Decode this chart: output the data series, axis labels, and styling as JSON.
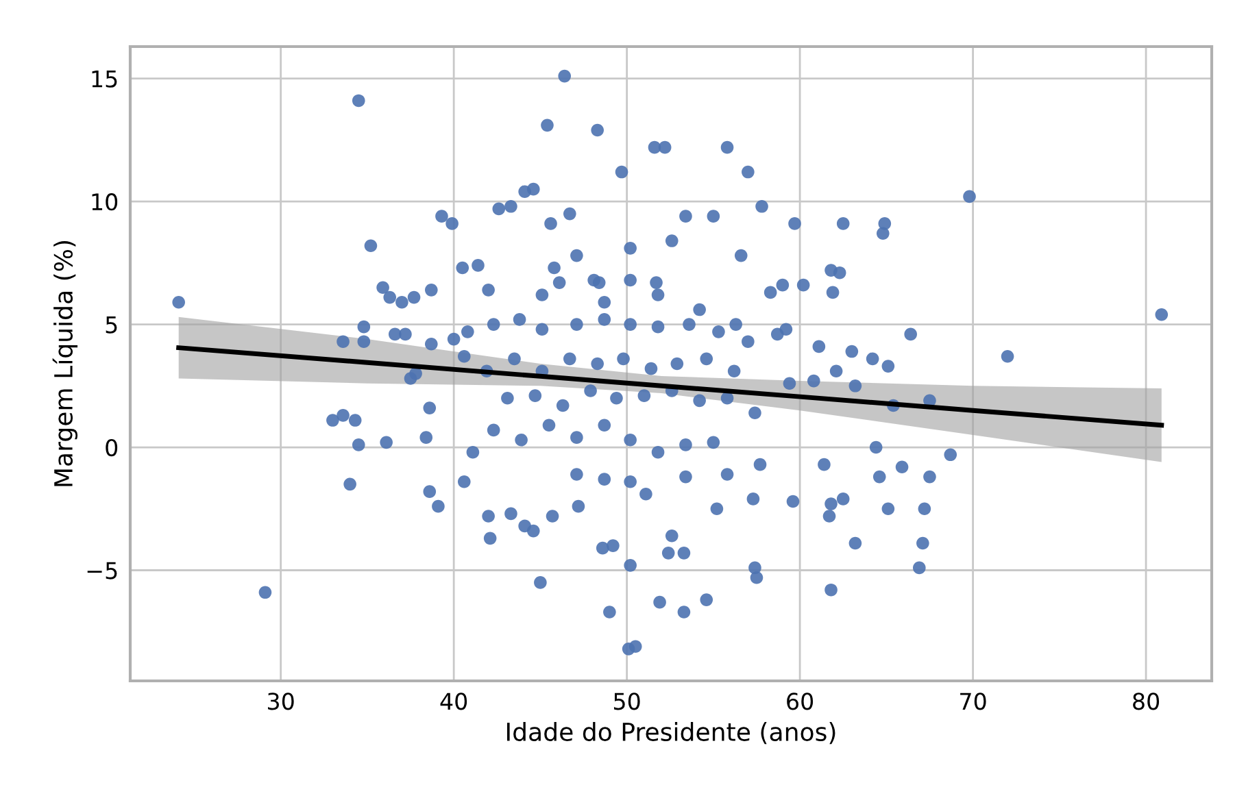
{
  "chart_data": {
    "type": "scatter",
    "xlabel": "Idade do Presidente (anos)",
    "ylabel": "Margem Líquida (%)",
    "xlim": [
      21.3,
      83.8
    ],
    "ylim": [
      -9.5,
      16.3
    ],
    "xticks": [
      30,
      40,
      50,
      60,
      70,
      80
    ],
    "yticks": [
      {
        "value": -5,
        "label": "−5"
      },
      0,
      5,
      10,
      15
    ],
    "grid": true,
    "series": [
      {
        "marker": "circle",
        "color": "#4c72b0",
        "x": [
          24.1,
          29.1,
          34.5,
          35.2,
          46.4,
          45.4,
          48.3,
          51.6,
          52.2,
          55.8,
          49.7,
          57.0,
          69.8,
          44.1,
          44.6,
          39.3,
          39.9,
          42.6,
          43.3,
          57.8,
          59.7,
          62.5,
          64.9,
          64.8,
          53.4,
          55.0,
          45.6,
          46.7,
          41.4,
          40.5,
          35.9,
          36.3,
          37.0,
          37.7,
          38.7,
          42.0,
          45.8,
          46.1,
          48.1,
          48.4,
          50.2,
          51.7,
          59.0,
          61.8,
          62.3,
          61.9,
          60.2,
          58.3,
          33.6,
          34.8,
          34.8,
          36.6,
          37.2,
          38.7,
          37.5,
          37.8,
          40.0,
          40.6,
          40.8,
          42.3,
          43.8,
          45.1,
          47.1,
          48.7,
          50.2,
          51.8,
          53.6,
          55.3,
          56.3,
          57.0,
          58.7,
          59.2,
          61.1,
          63.0,
          66.4,
          72.0,
          80.9,
          65.1,
          64.2,
          62.1,
          60.8,
          59.4,
          63.2,
          65.4,
          67.5,
          33.6,
          33.0,
          34.3,
          34.5,
          36.1,
          34.0,
          38.4,
          38.6,
          38.6,
          39.1,
          40.6,
          42.0,
          42.1,
          43.3,
          44.1,
          44.6,
          45.0,
          45.7,
          47.2,
          48.6,
          49.2,
          49.0,
          50.1,
          50.5,
          50.2,
          51.1,
          52.4,
          53.3,
          51.9,
          53.3,
          54.6,
          57.4,
          57.5,
          55.2,
          57.3,
          59.6,
          61.4,
          61.8,
          61.7,
          62.5,
          63.2,
          64.6,
          65.1,
          67.2,
          67.1,
          66.9,
          68.7,
          67.5,
          65.9,
          64.4,
          61.8,
          57.7,
          55.0,
          53.4,
          51.8,
          50.2,
          48.7,
          47.1,
          45.5,
          43.9,
          42.3,
          41.1,
          43.1,
          44.7,
          46.3,
          47.9,
          49.4,
          51.0,
          52.6,
          54.2,
          55.8,
          57.4,
          41.9,
          43.5,
          45.1,
          46.7,
          48.3,
          49.8,
          51.4,
          52.9,
          54.6,
          56.2,
          47.1,
          48.7,
          50.2,
          53.4,
          55.8,
          52.6,
          48.7,
          51.8,
          54.2,
          45.1,
          50.2,
          52.6,
          47.1,
          56.6
        ],
        "values": [
          5.9,
          -5.9,
          14.1,
          8.2,
          15.1,
          13.1,
          12.9,
          12.2,
          12.2,
          12.2,
          11.2,
          11.2,
          10.2,
          10.4,
          10.5,
          9.4,
          9.1,
          9.7,
          9.8,
          9.8,
          9.1,
          9.1,
          9.1,
          8.7,
          9.4,
          9.4,
          9.1,
          9.5,
          7.4,
          7.3,
          6.5,
          6.1,
          5.9,
          6.1,
          6.4,
          6.4,
          7.3,
          6.7,
          6.8,
          6.7,
          6.8,
          6.7,
          6.6,
          7.2,
          7.1,
          6.3,
          6.6,
          6.3,
          4.3,
          4.9,
          4.3,
          4.6,
          4.6,
          4.2,
          2.8,
          3.0,
          4.4,
          3.7,
          4.7,
          5.0,
          5.2,
          4.8,
          5.0,
          5.2,
          5.0,
          4.9,
          5.0,
          4.7,
          5.0,
          4.3,
          4.6,
          4.8,
          4.1,
          3.9,
          4.6,
          3.7,
          5.4,
          3.3,
          3.6,
          3.1,
          2.7,
          2.6,
          2.5,
          1.7,
          1.9,
          1.3,
          1.1,
          1.1,
          0.1,
          0.2,
          -1.5,
          0.4,
          1.6,
          -1.8,
          -2.4,
          -1.4,
          -2.8,
          -3.7,
          -2.7,
          -3.2,
          -3.4,
          -5.5,
          -2.8,
          -2.4,
          -4.1,
          -4.0,
          -6.7,
          -8.2,
          -8.1,
          -4.8,
          -1.9,
          -4.3,
          -4.3,
          -6.3,
          -6.7,
          -6.2,
          -4.9,
          -5.3,
          -2.5,
          -2.1,
          -2.2,
          -0.7,
          -2.3,
          -2.8,
          -2.1,
          -3.9,
          -1.2,
          -2.5,
          -2.5,
          -3.9,
          -4.9,
          -0.3,
          -1.2,
          -0.8,
          0.0,
          -5.8,
          -0.7,
          0.2,
          0.1,
          -0.2,
          0.3,
          0.9,
          0.4,
          0.9,
          0.3,
          0.7,
          -0.2,
          2.0,
          2.1,
          1.7,
          2.3,
          2.0,
          2.1,
          2.3,
          1.9,
          2.0,
          1.4,
          3.1,
          3.6,
          3.1,
          3.6,
          3.4,
          3.6,
          3.2,
          3.4,
          3.6,
          3.1,
          -1.1,
          -1.3,
          -1.4,
          -1.2,
          -1.1,
          -3.6,
          5.9,
          6.2,
          5.6,
          6.2,
          8.1,
          8.4,
          7.8,
          7.8
        ]
      },
      {
        "type": "line",
        "color": "#000000",
        "x": [
          24.1,
          35,
          45,
          52,
          60,
          70,
          80.9
        ],
        "values": [
          4.05,
          3.45,
          2.89,
          2.5,
          2.06,
          1.5,
          0.9
        ],
        "lower": [
          2.8,
          2.6,
          2.5,
          2.2,
          1.5,
          0.5,
          -0.6
        ],
        "upper": [
          5.3,
          4.4,
          3.4,
          2.9,
          2.7,
          2.5,
          2.4
        ]
      }
    ]
  }
}
